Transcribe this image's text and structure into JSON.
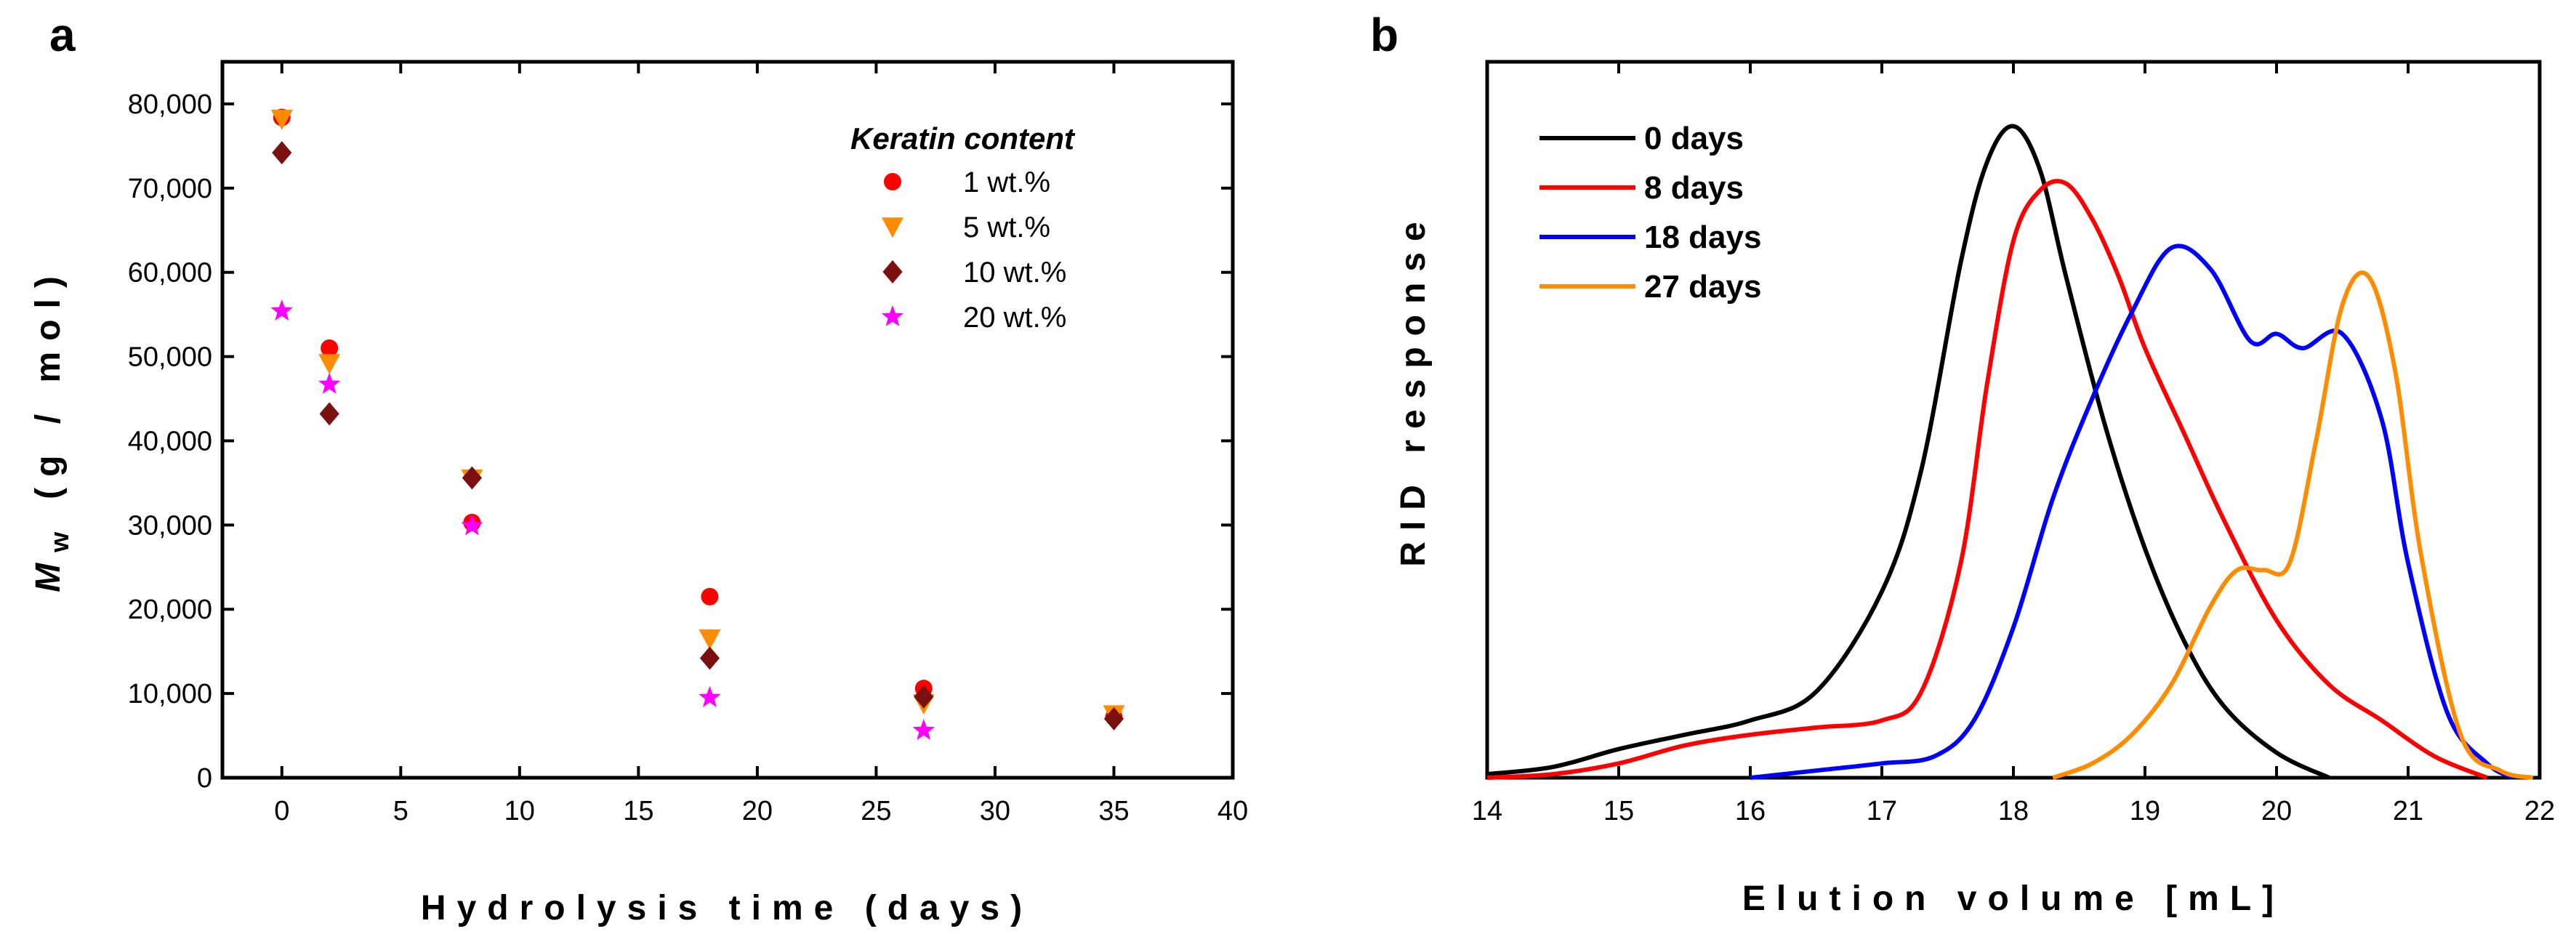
{
  "chart_data": [
    {
      "panel": "a",
      "type": "scatter",
      "xlabel": "Hydrolysis time (days)",
      "ylabel_italic": "M",
      "ylabel_sub": "w",
      "ylabel_units": "(g / mol)",
      "xlim": [
        -2.5,
        40
      ],
      "ylim": [
        0,
        85000
      ],
      "xticks": [
        0,
        5,
        10,
        15,
        20,
        25,
        30,
        35,
        40
      ],
      "yticks": [
        0,
        10000,
        20000,
        30000,
        40000,
        50000,
        60000,
        70000,
        80000
      ],
      "ytick_labels": [
        "0",
        "10,000",
        "20,000",
        "30,000",
        "40,000",
        "50,000",
        "60,000",
        "70,000",
        "80,000"
      ],
      "legend_title": "Keratin content",
      "legend_position": "top-right",
      "series": [
        {
          "name": "1 wt.%",
          "marker": "circle",
          "color": "#ff0000",
          "x": [
            0,
            2,
            8,
            18,
            27,
            35
          ],
          "y": [
            78400,
            51000,
            30300,
            21500,
            10600,
            7200
          ]
        },
        {
          "name": "5 wt.%",
          "marker": "triangle-down",
          "color": "#ff8c00",
          "x": [
            0,
            2,
            8,
            18,
            27,
            35
          ],
          "y": [
            78200,
            49200,
            35500,
            16500,
            8800,
            7500
          ]
        },
        {
          "name": "10 wt.%",
          "marker": "diamond",
          "color": "#7a1010",
          "x": [
            0,
            2,
            8,
            18,
            27,
            35
          ],
          "y": [
            74200,
            43200,
            35600,
            14200,
            9600,
            7000
          ]
        },
        {
          "name": "20 wt.%",
          "marker": "star",
          "color": "#ff00ff",
          "x": [
            0,
            2,
            8,
            18,
            27
          ],
          "y": [
            55400,
            46700,
            29900,
            9500,
            5600
          ]
        }
      ]
    },
    {
      "panel": "b",
      "type": "line",
      "xlabel": "Elution volume [mL]",
      "ylabel": "RID response",
      "xlim": [
        14,
        22
      ],
      "ylim": [
        0,
        1.0
      ],
      "xticks": [
        14,
        15,
        16,
        17,
        18,
        19,
        20,
        21,
        22
      ],
      "legend_position": "top-left",
      "series": [
        {
          "name": "0 days",
          "color": "#000000",
          "x": [
            14.0,
            14.5,
            15.0,
            15.5,
            16.0,
            16.5,
            17.0,
            17.3,
            17.6,
            17.8,
            18.0,
            18.2,
            18.4,
            18.7,
            19.0,
            19.3,
            19.6,
            20.0,
            20.4
          ],
          "y": [
            0.005,
            0.015,
            0.04,
            0.06,
            0.08,
            0.12,
            0.26,
            0.43,
            0.72,
            0.86,
            0.91,
            0.85,
            0.7,
            0.49,
            0.32,
            0.19,
            0.1,
            0.035,
            0.0
          ]
        },
        {
          "name": "8 days",
          "color": "#ff0000",
          "x": [
            14.0,
            14.5,
            15.0,
            15.5,
            16.0,
            16.5,
            17.0,
            17.3,
            17.6,
            17.8,
            18.0,
            18.2,
            18.4,
            18.6,
            18.8,
            19.0,
            19.3,
            19.6,
            20.0,
            20.4,
            20.8,
            21.2,
            21.6
          ],
          "y": [
            0.0,
            0.005,
            0.02,
            0.045,
            0.06,
            0.07,
            0.08,
            0.12,
            0.3,
            0.55,
            0.75,
            0.82,
            0.83,
            0.78,
            0.7,
            0.6,
            0.48,
            0.36,
            0.22,
            0.13,
            0.08,
            0.03,
            0.0
          ]
        },
        {
          "name": "18 days",
          "color": "#0000ff",
          "x": [
            16.0,
            16.5,
            17.0,
            17.4,
            17.7,
            18.0,
            18.3,
            18.6,
            18.9,
            19.2,
            19.5,
            19.8,
            20.0,
            20.2,
            20.5,
            20.8,
            21.0,
            21.3,
            21.6,
            21.8
          ],
          "y": [
            0.0,
            0.01,
            0.02,
            0.03,
            0.08,
            0.21,
            0.39,
            0.53,
            0.65,
            0.74,
            0.71,
            0.61,
            0.62,
            0.6,
            0.62,
            0.5,
            0.3,
            0.09,
            0.02,
            0.0
          ]
        },
        {
          "name": "27 days",
          "color": "#ff8c00",
          "x": [
            18.3,
            18.6,
            18.9,
            19.2,
            19.5,
            19.7,
            19.9,
            20.1,
            20.3,
            20.5,
            20.7,
            20.9,
            21.1,
            21.4,
            21.7,
            21.95
          ],
          "y": [
            0.0,
            0.02,
            0.06,
            0.13,
            0.24,
            0.29,
            0.29,
            0.3,
            0.47,
            0.66,
            0.7,
            0.57,
            0.31,
            0.06,
            0.01,
            0.0
          ]
        }
      ]
    }
  ]
}
